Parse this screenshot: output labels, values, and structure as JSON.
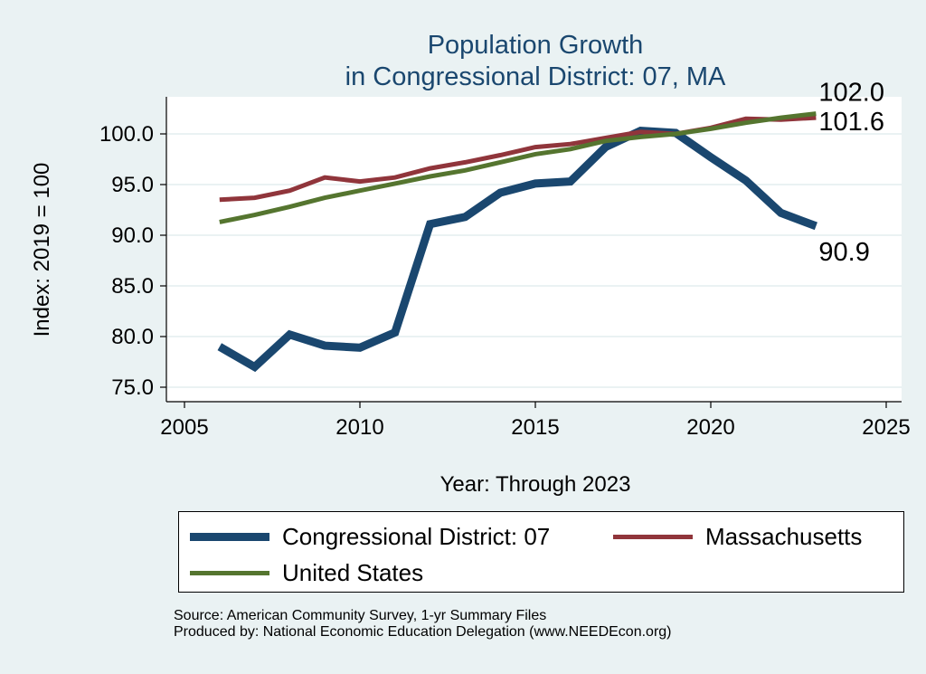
{
  "chart_data": {
    "type": "line",
    "title": [
      "Population Growth",
      "in Congressional District: 07, MA"
    ],
    "xlabel": "Year: Through 2023",
    "ylabel": "Index: 2019 = 100",
    "xlim": [
      2005,
      2025
    ],
    "ylim": [
      75,
      100
    ],
    "xticks": [
      2005,
      2010,
      2015,
      2020,
      2025
    ],
    "yticks": [
      "75.0",
      "80.0",
      "85.0",
      "90.0",
      "95.0",
      "100.0"
    ],
    "grid": true,
    "legend_position": "bottom",
    "x": [
      2006,
      2007,
      2008,
      2009,
      2010,
      2011,
      2012,
      2013,
      2014,
      2015,
      2016,
      2017,
      2018,
      2019,
      2020,
      2021,
      2022,
      2023
    ],
    "series": [
      {
        "name": "Congressional District: 07",
        "color": "#1a476f",
        "width": 9,
        "end_label": "90.9",
        "values": [
          79.0,
          77.0,
          80.2,
          79.1,
          78.9,
          80.4,
          91.1,
          91.8,
          94.2,
          95.1,
          95.3,
          98.7,
          100.3,
          100.1,
          97.7,
          95.4,
          92.2,
          90.9
        ]
      },
      {
        "name": "Massachusetts",
        "color": "#90353b",
        "width": 5,
        "end_label": "101.6",
        "values": [
          93.5,
          93.7,
          94.4,
          95.7,
          95.3,
          95.7,
          96.6,
          97.2,
          97.9,
          98.7,
          99.0,
          99.6,
          100.2,
          100.0,
          100.6,
          101.5,
          101.4,
          101.6
        ]
      },
      {
        "name": "United States",
        "color": "#55752f",
        "width": 5,
        "end_label": "102.0",
        "values": [
          91.3,
          92.0,
          92.8,
          93.7,
          94.4,
          95.1,
          95.8,
          96.4,
          97.2,
          98.0,
          98.5,
          99.3,
          99.7,
          100.0,
          100.5,
          101.1,
          101.6,
          102.0
        ]
      }
    ]
  },
  "footer": {
    "source": "Source: American Community Survey, 1-yr Summary Files",
    "produced": "Produced by: National Economic Education Delegation (www.NEEDEcon.org)"
  }
}
